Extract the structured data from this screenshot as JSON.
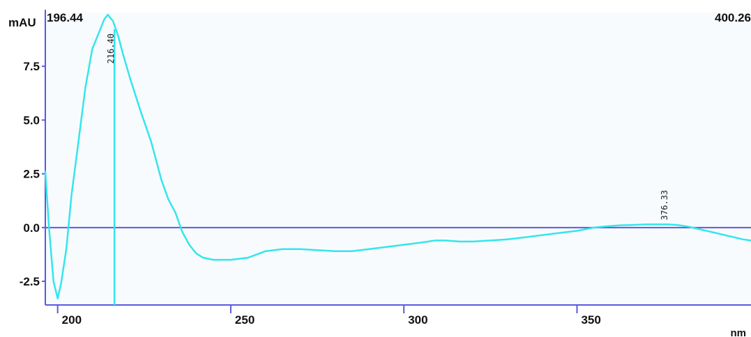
{
  "chart_data": {
    "type": "line",
    "ylabel": "mAU",
    "xlabel": "nm",
    "range_start_label": "196.44",
    "range_end_label": "400.26",
    "xlim": [
      196.44,
      400.26
    ],
    "ylim": [
      -3.6,
      10.0
    ],
    "x_ticks": [
      200,
      250,
      300,
      350
    ],
    "x_tick_labels": [
      "200",
      "250",
      "300",
      "350"
    ],
    "y_ticks": [
      -2.5,
      0.0,
      2.5,
      5.0,
      7.5
    ],
    "y_tick_labels": [
      "-2.5",
      "0.0",
      "2.5",
      "5.0",
      "7.5"
    ],
    "series": [
      {
        "color": "#33e6ec",
        "x": [
          196.44,
          197.5,
          198.8,
          200.0,
          201.0,
          202.5,
          204.0,
          206.0,
          208.0,
          210.0,
          212.0,
          213.5,
          214.5,
          216.0,
          217.5,
          219.0,
          221.0,
          224.0,
          227.0,
          230.0,
          232.0,
          234.0,
          236.0,
          238.0,
          240.0,
          242.0,
          245.0,
          250.0,
          255.0,
          260.0,
          265.0,
          270.0,
          275.0,
          280.0,
          285.0,
          290.0,
          295.0,
          300.0,
          305.0,
          309.0,
          312.0,
          316.0,
          320.0,
          325.0,
          330.0,
          335.0,
          340.0,
          345.0,
          350.0,
          355.0,
          358.0,
          362.0,
          366.0,
          370.0,
          374.0,
          376.3,
          379.0,
          382.0,
          386.0,
          390.0,
          394.0,
          398.0,
          400.26
        ],
        "y": [
          2.6,
          0.0,
          -2.5,
          -3.3,
          -2.6,
          -1.0,
          1.5,
          4.0,
          6.5,
          8.3,
          9.1,
          9.7,
          9.9,
          9.6,
          8.9,
          8.0,
          6.9,
          5.4,
          4.0,
          2.2,
          1.3,
          0.7,
          -0.2,
          -0.8,
          -1.2,
          -1.4,
          -1.5,
          -1.5,
          -1.4,
          -1.1,
          -1.0,
          -1.0,
          -1.05,
          -1.1,
          -1.1,
          -1.0,
          -0.9,
          -0.8,
          -0.7,
          -0.6,
          -0.6,
          -0.65,
          -0.65,
          -0.6,
          -0.55,
          -0.45,
          -0.35,
          -0.25,
          -0.15,
          0.0,
          0.05,
          0.1,
          0.12,
          0.15,
          0.15,
          0.15,
          0.12,
          0.05,
          -0.1,
          -0.25,
          -0.4,
          -0.55,
          -0.6
        ]
      }
    ],
    "peaks": [
      {
        "x": 216.4,
        "label": "216.40",
        "marker_line": true
      },
      {
        "x": 376.33,
        "label": "376.33",
        "marker_line": false
      }
    ],
    "baseline_y": 0.0,
    "axis_color": "#5a5ae0",
    "line_color": "#33e6ec",
    "grid": false
  }
}
